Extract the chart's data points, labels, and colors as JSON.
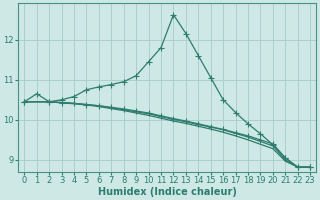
{
  "xlabel": "Humidex (Indice chaleur)",
  "ylabel": "",
  "bg_color": "#cde8e5",
  "grid_color": "#aed0cc",
  "line_color": "#2e7d6e",
  "xlim": [
    -0.5,
    23.5
  ],
  "ylim": [
    8.7,
    12.9
  ],
  "yticks": [
    9,
    10,
    11,
    12
  ],
  "xticks": [
    0,
    1,
    2,
    3,
    4,
    5,
    6,
    7,
    8,
    9,
    10,
    11,
    12,
    13,
    14,
    15,
    16,
    17,
    18,
    19,
    20,
    21,
    22,
    23
  ],
  "lines": [
    {
      "x": [
        0,
        1,
        2,
        3,
        4,
        5,
        6,
        7,
        8,
        9,
        10,
        11,
        12,
        13,
        14,
        15,
        16,
        17,
        18,
        19,
        20,
        21,
        22,
        23
      ],
      "y": [
        10.45,
        10.65,
        10.45,
        10.5,
        10.58,
        10.75,
        10.82,
        10.88,
        10.95,
        11.1,
        11.45,
        11.8,
        12.62,
        12.15,
        11.6,
        11.05,
        10.5,
        10.18,
        9.9,
        9.65,
        9.38,
        9.05,
        8.82,
        8.82
      ],
      "marker": true
    },
    {
      "x": [
        0,
        2,
        3,
        4,
        5,
        6,
        7,
        8,
        9,
        10,
        11,
        12,
        13,
        14,
        15,
        16,
        17,
        18,
        19,
        20,
        21,
        22,
        23
      ],
      "y": [
        10.45,
        10.45,
        10.43,
        10.41,
        10.38,
        10.35,
        10.31,
        10.27,
        10.22,
        10.17,
        10.1,
        10.03,
        9.97,
        9.9,
        9.83,
        9.76,
        9.68,
        9.6,
        9.5,
        9.4,
        9.05,
        8.82,
        8.82
      ],
      "marker": true
    },
    {
      "x": [
        0,
        2,
        3,
        4,
        5,
        6,
        7,
        8,
        9,
        10,
        11,
        12,
        13,
        14,
        15,
        16,
        17,
        18,
        19,
        20,
        21,
        22,
        23
      ],
      "y": [
        10.45,
        10.45,
        10.43,
        10.41,
        10.38,
        10.35,
        10.3,
        10.25,
        10.2,
        10.15,
        10.08,
        10.01,
        9.95,
        9.88,
        9.82,
        9.75,
        9.66,
        9.57,
        9.46,
        9.35,
        9.0,
        8.82,
        8.82
      ],
      "marker": false
    },
    {
      "x": [
        0,
        2,
        3,
        4,
        5,
        6,
        7,
        8,
        9,
        10,
        11,
        12,
        13,
        14,
        15,
        16,
        17,
        18,
        19,
        20,
        21,
        22,
        23
      ],
      "y": [
        10.45,
        10.45,
        10.42,
        10.4,
        10.37,
        10.33,
        10.28,
        10.23,
        10.17,
        10.11,
        10.04,
        9.97,
        9.91,
        9.84,
        9.77,
        9.69,
        9.6,
        9.5,
        9.39,
        9.28,
        8.97,
        8.82,
        8.82
      ],
      "marker": false
    }
  ],
  "marker_style": "+",
  "markersize": 4,
  "linewidth": 0.9,
  "tick_fontsize": 6,
  "label_fontsize": 7,
  "spine_color": "#4a9080"
}
